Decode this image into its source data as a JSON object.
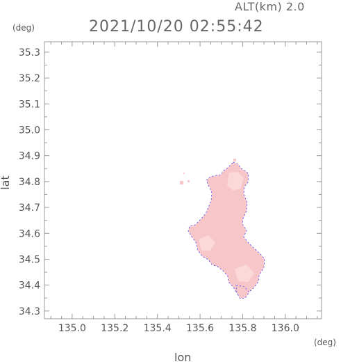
{
  "header": {
    "altitude": "ALT(km) 2.0",
    "timestamp": "2021/10/20 02:55:42"
  },
  "axes": {
    "x_unit": "(deg)",
    "y_unit": "(deg)",
    "x_label": "lon",
    "y_label": "lat",
    "x_range": [
      134.87,
      136.17
    ],
    "y_range": [
      34.27,
      35.34
    ],
    "x_ticks": [
      "135.0",
      "135.2",
      "135.4",
      "135.6",
      "135.8",
      "136.0"
    ],
    "y_ticks": [
      "34.3",
      "34.4",
      "34.5",
      "34.6",
      "34.7",
      "34.8",
      "34.9",
      "35.0",
      "35.1",
      "35.2",
      "35.3"
    ]
  },
  "colors": {
    "echo_fill": "#f7c6c8",
    "echo_light": "#fad7d8",
    "echo_edge": "#3a3aff",
    "frame": "#999999"
  }
}
